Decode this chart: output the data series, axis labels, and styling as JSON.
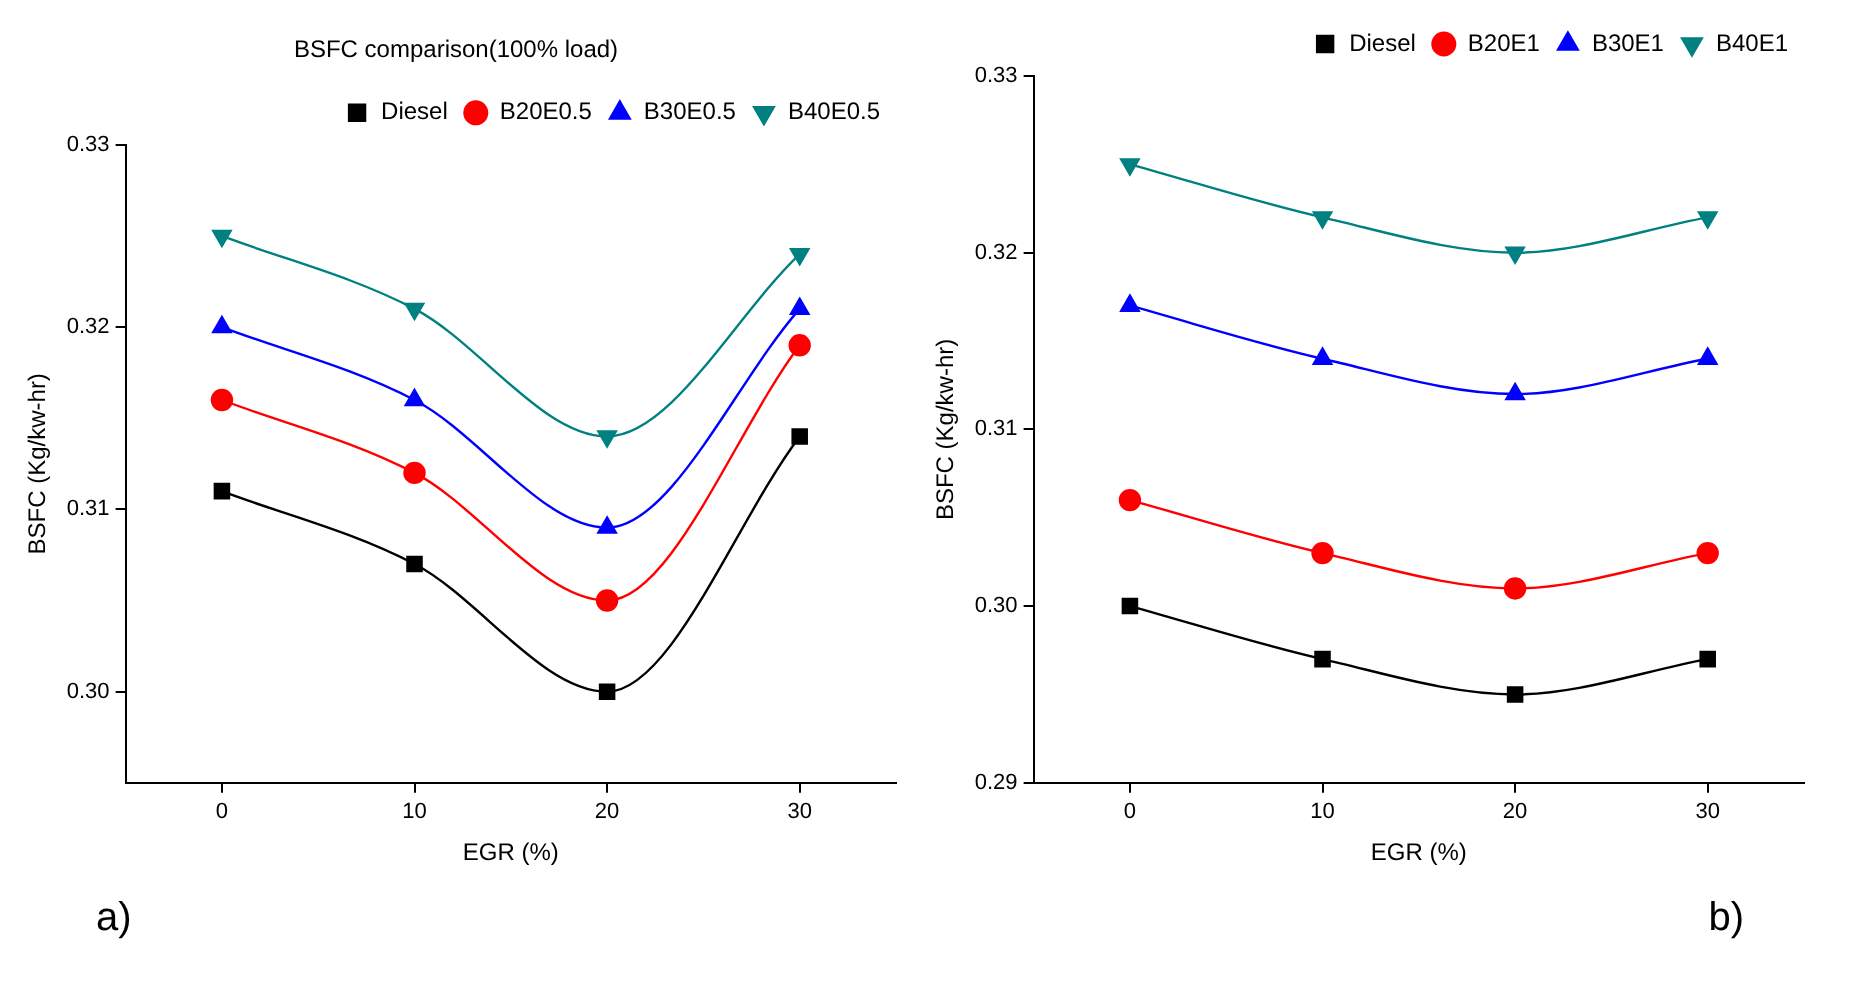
{
  "chart_data": [
    {
      "type": "line",
      "title": "BSFC comparison(100% load)",
      "xlabel": "EGR (%)",
      "ylabel": "BSFC (Kg/kw-hr)",
      "x": [
        0,
        10,
        20,
        30
      ],
      "series": [
        {
          "name": "Diesel",
          "color": "#000000",
          "marker": "square",
          "values": [
            0.311,
            0.307,
            0.3,
            0.314
          ]
        },
        {
          "name": "B20E0.5",
          "color": "#ff0000",
          "marker": "circle",
          "values": [
            0.316,
            0.312,
            0.305,
            0.319
          ]
        },
        {
          "name": "B30E0.5",
          "color": "#0000ff",
          "marker": "triangle",
          "values": [
            0.32,
            0.316,
            0.309,
            0.321
          ]
        },
        {
          "name": "B40E0.5",
          "color": "#008080",
          "marker": "triangle-down",
          "values": [
            0.325,
            0.321,
            0.314,
            0.324
          ]
        }
      ],
      "xlim": [
        -5,
        35
      ],
      "xticks": [
        0,
        10,
        20,
        30
      ],
      "ylim": [
        0.295,
        0.33
      ],
      "yticks": [
        {
          "value": 0.3,
          "label": "0.30"
        },
        0.31,
        0.32,
        0.33
      ],
      "legend": "top right",
      "annotations": [
        "a)"
      ]
    },
    {
      "type": "line",
      "xlabel": "EGR (%)",
      "ylabel": "BSFC (Kg/kw-hr)",
      "x": [
        0,
        10,
        20,
        30
      ],
      "series": [
        {
          "name": "Diesel",
          "color": "#000000",
          "marker": "square",
          "values": [
            0.3,
            0.297,
            0.295,
            0.297
          ]
        },
        {
          "name": "B20E1",
          "color": "#ff0000",
          "marker": "circle",
          "values": [
            0.306,
            0.303,
            0.301,
            0.303
          ]
        },
        {
          "name": "B30E1",
          "color": "#0000ff",
          "marker": "triangle",
          "values": [
            0.317,
            0.314,
            0.312,
            0.314
          ]
        },
        {
          "name": "B40E1",
          "color": "#008080",
          "marker": "triangle-down",
          "values": [
            0.325,
            0.322,
            0.32,
            0.322
          ]
        }
      ],
      "xlim": [
        -5,
        35
      ],
      "xticks": [
        0,
        10,
        20,
        30
      ],
      "ylim": [
        0.29,
        0.33
      ],
      "yticks": [
        0.29,
        {
          "value": 0.3,
          "label": "0.30"
        },
        0.31,
        0.32,
        0.33
      ],
      "legend": "top right",
      "annotations": [
        "b)"
      ]
    }
  ]
}
